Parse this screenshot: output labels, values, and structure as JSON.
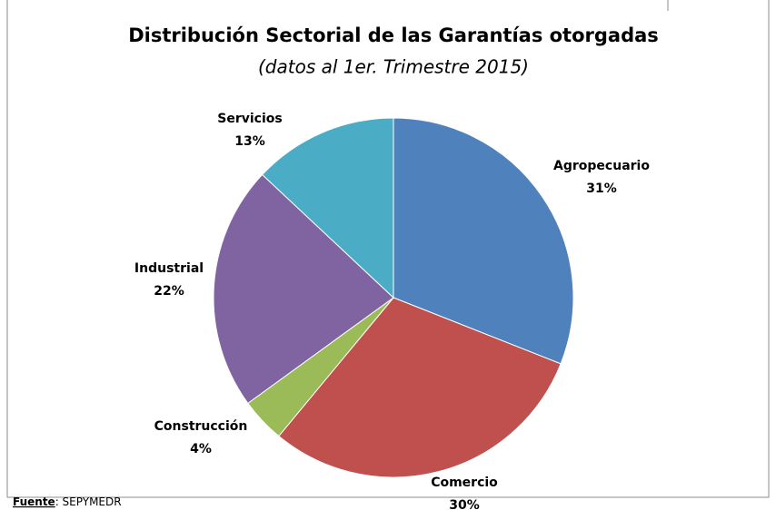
{
  "chart_data": {
    "type": "pie",
    "title": "Distribución Sectorial de las Garantías otorgadas",
    "subtitle": "(datos al 1er. Trimestre 2015)",
    "categories": [
      "Agropecuario",
      "Comercio",
      "Construcción",
      "Industrial",
      "Servicios"
    ],
    "values": [
      31,
      30,
      4,
      22,
      13
    ],
    "value_labels": [
      "31%",
      "30%",
      "4%",
      "22%",
      "13%"
    ],
    "colors": [
      "#4F81BD",
      "#C0504D",
      "#9BBB59",
      "#8064A2",
      "#4BACC6"
    ],
    "source_label": "Fuente",
    "source_text": ": SEPYMEDR"
  }
}
